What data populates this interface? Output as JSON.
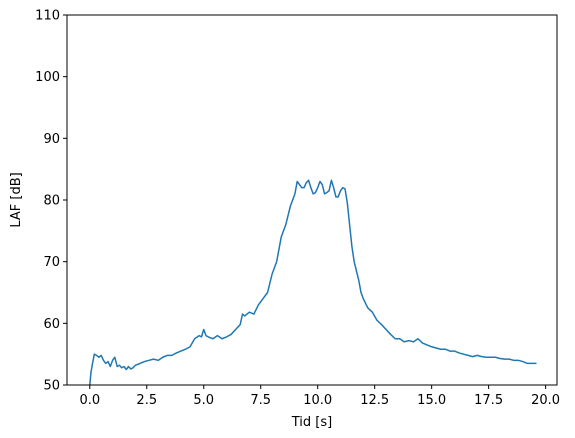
{
  "chart_data": {
    "type": "line",
    "xlabel": "Tid [s]",
    "ylabel": "LAF [dB]",
    "xlim": [
      -1.0,
      20.5
    ],
    "ylim": [
      50,
      110
    ],
    "xticks": [
      0.0,
      2.5,
      5.0,
      7.5,
      10.0,
      12.5,
      15.0,
      17.5,
      20.0
    ],
    "xtick_labels": [
      "0.0",
      "2.5",
      "5.0",
      "7.5",
      "10.0",
      "12.5",
      "15.0",
      "17.5",
      "20.0"
    ],
    "yticks": [
      50,
      60,
      70,
      80,
      90,
      100,
      110
    ],
    "ytick_labels": [
      "50",
      "60",
      "70",
      "80",
      "90",
      "100",
      "110"
    ],
    "grid": false,
    "series": [
      {
        "color": "#1f77b4",
        "x": [
          0.0,
          0.05,
          0.12,
          0.2,
          0.3,
          0.4,
          0.5,
          0.6,
          0.7,
          0.8,
          0.9,
          1.0,
          1.1,
          1.2,
          1.3,
          1.4,
          1.5,
          1.6,
          1.7,
          1.8,
          1.9,
          2.0,
          2.2,
          2.4,
          2.6,
          2.8,
          3.0,
          3.2,
          3.4,
          3.6,
          3.8,
          4.0,
          4.2,
          4.4,
          4.6,
          4.8,
          4.9,
          5.0,
          5.1,
          5.2,
          5.4,
          5.6,
          5.8,
          6.0,
          6.2,
          6.4,
          6.6,
          6.7,
          6.8,
          7.0,
          7.2,
          7.4,
          7.6,
          7.8,
          8.0,
          8.2,
          8.4,
          8.6,
          8.8,
          9.0,
          9.1,
          9.2,
          9.3,
          9.4,
          9.5,
          9.6,
          9.7,
          9.8,
          9.9,
          10.0,
          10.1,
          10.2,
          10.3,
          10.4,
          10.5,
          10.6,
          10.7,
          10.8,
          10.9,
          11.0,
          11.1,
          11.2,
          11.3,
          11.4,
          11.5,
          11.6,
          11.7,
          11.8,
          11.9,
          12.0,
          12.2,
          12.4,
          12.6,
          12.8,
          13.0,
          13.2,
          13.4,
          13.6,
          13.8,
          14.0,
          14.2,
          14.4,
          14.6,
          14.8,
          15.0,
          15.2,
          15.4,
          15.6,
          15.8,
          16.0,
          16.2,
          16.4,
          16.6,
          16.8,
          17.0,
          17.2,
          17.4,
          17.6,
          17.8,
          18.0,
          18.2,
          18.4,
          18.6,
          18.8,
          19.0,
          19.2,
          19.4,
          19.6
        ],
        "y": [
          50.0,
          52.0,
          53.5,
          55.0,
          54.8,
          54.5,
          54.8,
          54.0,
          53.5,
          53.8,
          53.0,
          54.0,
          54.5,
          53.0,
          53.2,
          52.8,
          53.0,
          52.5,
          53.0,
          52.6,
          52.8,
          53.2,
          53.5,
          53.8,
          54.0,
          54.2,
          54.0,
          54.5,
          54.8,
          54.8,
          55.2,
          55.5,
          55.8,
          56.2,
          57.5,
          58.0,
          57.8,
          59.0,
          58.0,
          57.8,
          57.5,
          58.0,
          57.5,
          57.8,
          58.2,
          59.0,
          59.8,
          61.5,
          61.2,
          61.8,
          61.5,
          63.0,
          64.0,
          65.0,
          68.0,
          70.0,
          74.0,
          76.0,
          79.0,
          81.0,
          83.0,
          82.5,
          82.0,
          82.0,
          82.8,
          83.2,
          82.0,
          81.0,
          81.2,
          82.0,
          83.0,
          82.5,
          81.0,
          81.2,
          81.5,
          83.2,
          82.0,
          80.5,
          80.5,
          81.5,
          82.0,
          81.8,
          79.5,
          76.0,
          72.5,
          70.0,
          68.5,
          67.0,
          65.0,
          64.0,
          62.5,
          61.8,
          60.5,
          59.8,
          59.0,
          58.2,
          57.5,
          57.5,
          57.0,
          57.2,
          57.0,
          57.5,
          56.8,
          56.5,
          56.2,
          56.0,
          55.8,
          55.8,
          55.5,
          55.5,
          55.2,
          55.0,
          54.8,
          54.6,
          54.8,
          54.6,
          54.5,
          54.5,
          54.5,
          54.3,
          54.2,
          54.2,
          54.0,
          54.0,
          53.8,
          53.5,
          53.5,
          53.5
        ]
      }
    ]
  }
}
